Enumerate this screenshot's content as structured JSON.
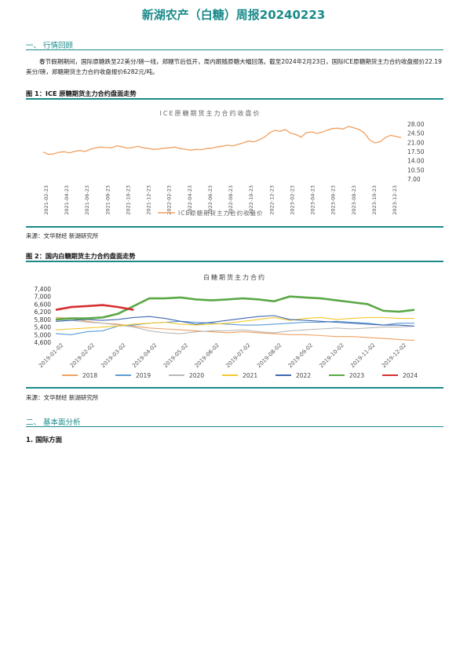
{
  "title": "新湖农产（白糖）周报20240223",
  "section1": "一、 行情回顾",
  "paragraph": "春节假期期间，国际原糖跌至22美分/磅一线，郑糖节后低开，周内跟随原糖大幅回落。截至2024年2月23日，国际ICE原糖期货主力合约收盘报价22.19美分/磅，郑糖期货主力合约收盘报价6282元/吨。",
  "fig1": {
    "title": "图 1：ICE 原糖期货主力合约盘面走势",
    "source": "来源：文华财经  新湖研究所",
    "chart_data": {
      "type": "line",
      "title": "ICE原糖期货主力合约收盘价",
      "ylim": [
        7.0,
        28.0
      ],
      "yticks": [
        "28.00",
        "24.50",
        "21.00",
        "17.50",
        "14.00",
        "10.50",
        "7.00"
      ],
      "xticks": [
        "2021-02-23",
        "2021-04-23",
        "2021-06-23",
        "2021-08-23",
        "2021-10-23",
        "2021-12-23",
        "2022-02-23",
        "2022-04-23",
        "2022-06-23",
        "2022-08-23",
        "2022-10-23",
        "2022-12-23",
        "2023-02-23",
        "2023-04-23",
        "2023-06-23",
        "2023-08-23",
        "2023-10-23",
        "2023-12-23"
      ],
      "legend_position": "bottom",
      "series": [
        {
          "name": "ICE原糖期货主力合约收盘价",
          "color": "#f0a060",
          "values": [
            17.3,
            16.4,
            16.6,
            17.2,
            17.4,
            17.0,
            17.6,
            17.9,
            17.5,
            18.4,
            18.9,
            19.2,
            19.0,
            18.9,
            19.7,
            19.3,
            18.8,
            19.0,
            19.5,
            18.9,
            18.7,
            18.3,
            18.5,
            18.8,
            18.9,
            19.2,
            18.6,
            18.4,
            18.0,
            18.3,
            18.2,
            18.6,
            18.8,
            19.2,
            19.5,
            19.9,
            19.6,
            20.2,
            20.8,
            21.5,
            21.2,
            21.9,
            22.9,
            24.6,
            25.6,
            25.2,
            25.9,
            24.5,
            24.0,
            23.0,
            24.7,
            25.0,
            24.4,
            24.9,
            25.7,
            26.3,
            26.4,
            26.1,
            27.1,
            26.6,
            25.9,
            24.6,
            22.0,
            20.8,
            21.2,
            22.8,
            23.7,
            23.3,
            22.8
          ]
        }
      ]
    }
  },
  "fig2": {
    "title": "图 2：国内白糖期货主力合约盘面走势",
    "source": "来源：文华财经  新湖研究所",
    "chart_data": {
      "type": "line",
      "title": "白糖期货主力合约",
      "ylim": [
        4600,
        7400
      ],
      "yticks": [
        "7,400",
        "7,000",
        "6,600",
        "6,200",
        "5,800",
        "5,400",
        "5,000",
        "4,600"
      ],
      "xticks": [
        "2019-01-02",
        "2019-02-02",
        "2019-03-02",
        "2019-04-02",
        "2019-05-02",
        "2019-06-02",
        "2019-07-02",
        "2019-08-02",
        "2019-09-02",
        "2019-10-02",
        "2019-11-02",
        "2019-12-02"
      ],
      "legend_position": "bottom",
      "series": [
        {
          "name": "2018",
          "color": "#f0a060",
          "values": [
            5900,
            5850,
            5700,
            5600,
            5550,
            5450,
            5350,
            5300,
            5250,
            5200,
            5150,
            5100,
            5150,
            5100,
            5050,
            5000,
            5000,
            4950,
            4900,
            4900,
            4850,
            4800,
            4750,
            4700
          ]
        },
        {
          "name": "2019",
          "color": "#5a9bd5",
          "values": [
            5050,
            5000,
            5150,
            5200,
            5450,
            5500,
            5600,
            5650,
            5700,
            5650,
            5600,
            5550,
            5500,
            5500,
            5550,
            5600,
            5650,
            5650,
            5700,
            5650,
            5600,
            5500,
            5600,
            5600
          ]
        },
        {
          "name": "2020",
          "color": "#b8b8b8",
          "values": [
            5700,
            5750,
            5650,
            5600,
            5500,
            5400,
            5200,
            5100,
            5050,
            5150,
            5200,
            5200,
            5250,
            5150,
            5100,
            5200,
            5250,
            5300,
            5350,
            5300,
            5350,
            5400,
            5400,
            5450
          ]
        },
        {
          "name": "2021",
          "color": "#f2c82c",
          "values": [
            5250,
            5300,
            5350,
            5400,
            5450,
            5550,
            5600,
            5650,
            5550,
            5500,
            5550,
            5600,
            5700,
            5800,
            5900,
            5750,
            5850,
            5900,
            5800,
            5850,
            5900,
            5900,
            5850,
            5850
          ]
        },
        {
          "name": "2022",
          "color": "#3e66b0",
          "values": [
            5700,
            5750,
            5800,
            5750,
            5800,
            5900,
            5950,
            5850,
            5700,
            5550,
            5650,
            5750,
            5850,
            5950,
            6000,
            5800,
            5750,
            5700,
            5650,
            5600,
            5550,
            5500,
            5500,
            5450
          ]
        },
        {
          "name": "2023",
          "color": "#5aa845",
          "values": [
            5800,
            5850,
            5850,
            5900,
            6100,
            6500,
            6900,
            6900,
            6950,
            6850,
            6800,
            6850,
            6900,
            6850,
            6750,
            7000,
            6950,
            6900,
            6800,
            6700,
            6600,
            6250,
            6200,
            6300
          ]
        },
        {
          "name": "2024",
          "color": "#d62f2f",
          "values": [
            6300,
            6450,
            6500,
            6550,
            6450,
            6300
          ]
        }
      ]
    }
  },
  "section2": "二、 基本面分析",
  "sub1": "1. 国际方面"
}
